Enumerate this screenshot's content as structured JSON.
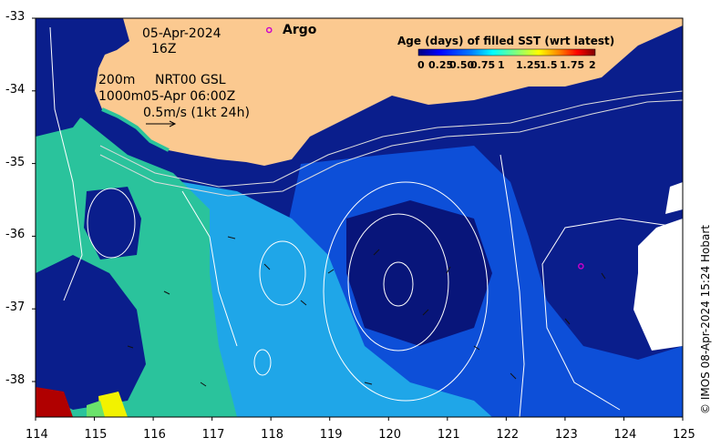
{
  "map_title": {
    "date": "05-Apr-2024",
    "hour": "16Z",
    "contour_200": "200m",
    "product": "NRT00 GSL",
    "contour_1000": "1000m",
    "valid_time": "05-Apr 06:00Z",
    "vector_scale": "0.5m/s (1kt 24h)"
  },
  "legend": {
    "argo_label": "Argo",
    "argo_color": "#cc00cc"
  },
  "colorbar": {
    "title": "Age (days) of filled SST (wrt latest)",
    "ticks": [
      "0",
      "0.25",
      "0.50",
      "0.75",
      "1",
      "1.25",
      "1.5",
      "1.75",
      "2"
    ],
    "colors": [
      "#00007f",
      "#0000ff",
      "#007fff",
      "#00ffff",
      "#7fff7f",
      "#ffff00",
      "#ff7f00",
      "#ff0000",
      "#7f0000"
    ]
  },
  "axes": {
    "x_ticks": [
      "114",
      "115",
      "116",
      "117",
      "118",
      "119",
      "120",
      "121",
      "122",
      "123",
      "124",
      "125"
    ],
    "y_ticks": [
      "-33",
      "-34",
      "-35",
      "-36",
      "-37",
      "-38"
    ],
    "lon_range": [
      114,
      125
    ],
    "lat_range": [
      -38.5,
      -33
    ]
  },
  "land_color": "#fbc990",
  "argo_floats": [
    {
      "lon": 117.97,
      "lat": -33.18
    },
    {
      "lon": 123.27,
      "lat": -36.42
    }
  ],
  "credit": "© IMOS 08-Apr-2024 15:24 Hobart"
}
